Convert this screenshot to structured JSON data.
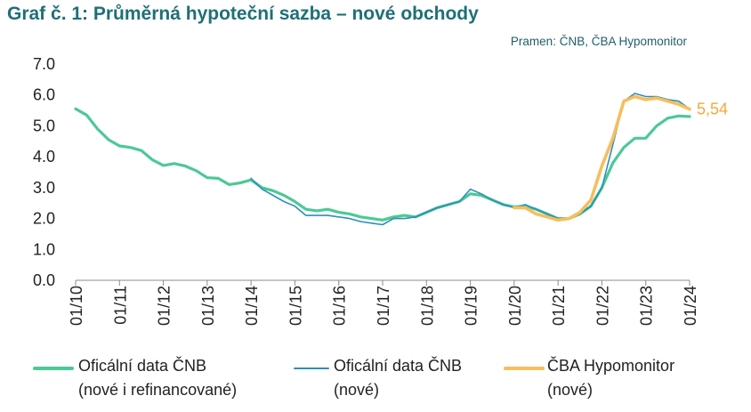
{
  "header": {
    "title": "Graf č. 1: Průměrná hypoteční sazba – nové obchody",
    "source": "Pramen: ČNB, ČBA Hypomonitor"
  },
  "legend": [
    {
      "line1": "Oficální data ČNB",
      "line2": "(nové i refinancované)"
    },
    {
      "line1": "Oficální data ČNB",
      "line2": "(nové)"
    },
    {
      "line1": "ČBA Hypomonitor",
      "line2": "(nové)"
    }
  ],
  "chart_data": {
    "type": "line",
    "x_ticks": [
      "01/10",
      "01/11",
      "01/12",
      "01/13",
      "01/14",
      "01/15",
      "01/16",
      "01/17",
      "01/18",
      "01/19",
      "01/20",
      "01/21",
      "01/22",
      "01/23",
      "01/24"
    ],
    "y_ticks": [
      "0.0",
      "1.0",
      "2.0",
      "3.0",
      "4.0",
      "5.0",
      "6.0",
      "7.0"
    ],
    "ylim": [
      0,
      7
    ],
    "x_range": [
      "01/10",
      "01/24"
    ],
    "end_label": "5,54",
    "colors": {
      "cnb_all": "#4cc996",
      "cnb_new": "#2e8fb8",
      "hypomonitor": "#f7be5e",
      "end_label": "#f2a93b"
    },
    "series": [
      {
        "name": "Oficální data ČNB (nové i refinancované)",
        "x": [
          "01/10",
          "04/10",
          "07/10",
          "10/10",
          "01/11",
          "04/11",
          "07/11",
          "10/11",
          "01/12",
          "04/12",
          "07/12",
          "10/12",
          "01/13",
          "04/13",
          "07/13",
          "10/13",
          "01/14",
          "04/14",
          "07/14",
          "10/14",
          "01/15",
          "04/15",
          "07/15",
          "10/15",
          "01/16",
          "04/16",
          "07/16",
          "10/16",
          "01/17",
          "04/17",
          "07/17",
          "10/17",
          "01/18",
          "04/18",
          "07/18",
          "10/18",
          "01/19",
          "04/19",
          "07/19",
          "10/19",
          "01/20",
          "04/20",
          "07/20",
          "10/20",
          "01/21",
          "04/21",
          "07/21",
          "10/21",
          "01/22",
          "04/22",
          "07/22",
          "10/22",
          "01/23",
          "04/23",
          "07/23",
          "10/23",
          "01/24"
        ],
        "values": [
          5.55,
          5.35,
          4.9,
          4.55,
          4.35,
          4.3,
          4.2,
          3.9,
          3.72,
          3.78,
          3.7,
          3.55,
          3.32,
          3.3,
          3.1,
          3.15,
          3.25,
          3.0,
          2.9,
          2.75,
          2.55,
          2.3,
          2.25,
          2.3,
          2.2,
          2.15,
          2.05,
          2.0,
          1.95,
          2.05,
          2.1,
          2.05,
          2.2,
          2.35,
          2.45,
          2.55,
          2.8,
          2.75,
          2.6,
          2.45,
          2.38,
          2.4,
          2.3,
          2.15,
          2.0,
          2.0,
          2.15,
          2.4,
          3.0,
          3.8,
          4.3,
          4.6,
          4.6,
          5.0,
          5.25,
          5.32,
          5.3
        ]
      },
      {
        "name": "Oficální data ČNB (nové)",
        "x": [
          "01/14",
          "04/14",
          "07/14",
          "10/14",
          "01/15",
          "04/15",
          "07/15",
          "10/15",
          "01/16",
          "04/16",
          "07/16",
          "10/16",
          "01/17",
          "04/17",
          "07/17",
          "10/17",
          "01/18",
          "04/18",
          "07/18",
          "10/18",
          "01/19",
          "04/19",
          "07/19",
          "10/19",
          "01/20",
          "04/20",
          "07/20",
          "10/20",
          "01/21",
          "04/21",
          "07/21",
          "10/21",
          "01/22",
          "04/22",
          "07/22",
          "10/22",
          "01/23",
          "04/23",
          "07/23",
          "10/23",
          "01/24"
        ],
        "values": [
          3.3,
          2.95,
          2.75,
          2.55,
          2.4,
          2.1,
          2.1,
          2.1,
          2.05,
          2.0,
          1.9,
          1.85,
          1.8,
          2.0,
          2.0,
          2.05,
          2.2,
          2.35,
          2.45,
          2.55,
          2.95,
          2.8,
          2.6,
          2.45,
          2.35,
          2.45,
          2.3,
          2.15,
          2.0,
          2.0,
          2.15,
          2.4,
          3.0,
          4.4,
          5.8,
          6.05,
          5.95,
          5.95,
          5.85,
          5.8,
          5.55
        ]
      },
      {
        "name": "ČBA Hypomonitor (nové)",
        "x": [
          "01/20",
          "04/20",
          "07/20",
          "10/20",
          "01/21",
          "04/21",
          "07/21",
          "10/21",
          "01/22",
          "04/22",
          "07/22",
          "10/22",
          "01/23",
          "04/23",
          "07/23",
          "10/23",
          "01/24"
        ],
        "values": [
          2.35,
          2.35,
          2.15,
          2.05,
          1.95,
          2.0,
          2.2,
          2.6,
          3.7,
          4.6,
          5.8,
          5.95,
          5.85,
          5.9,
          5.8,
          5.7,
          5.54
        ]
      }
    ]
  }
}
